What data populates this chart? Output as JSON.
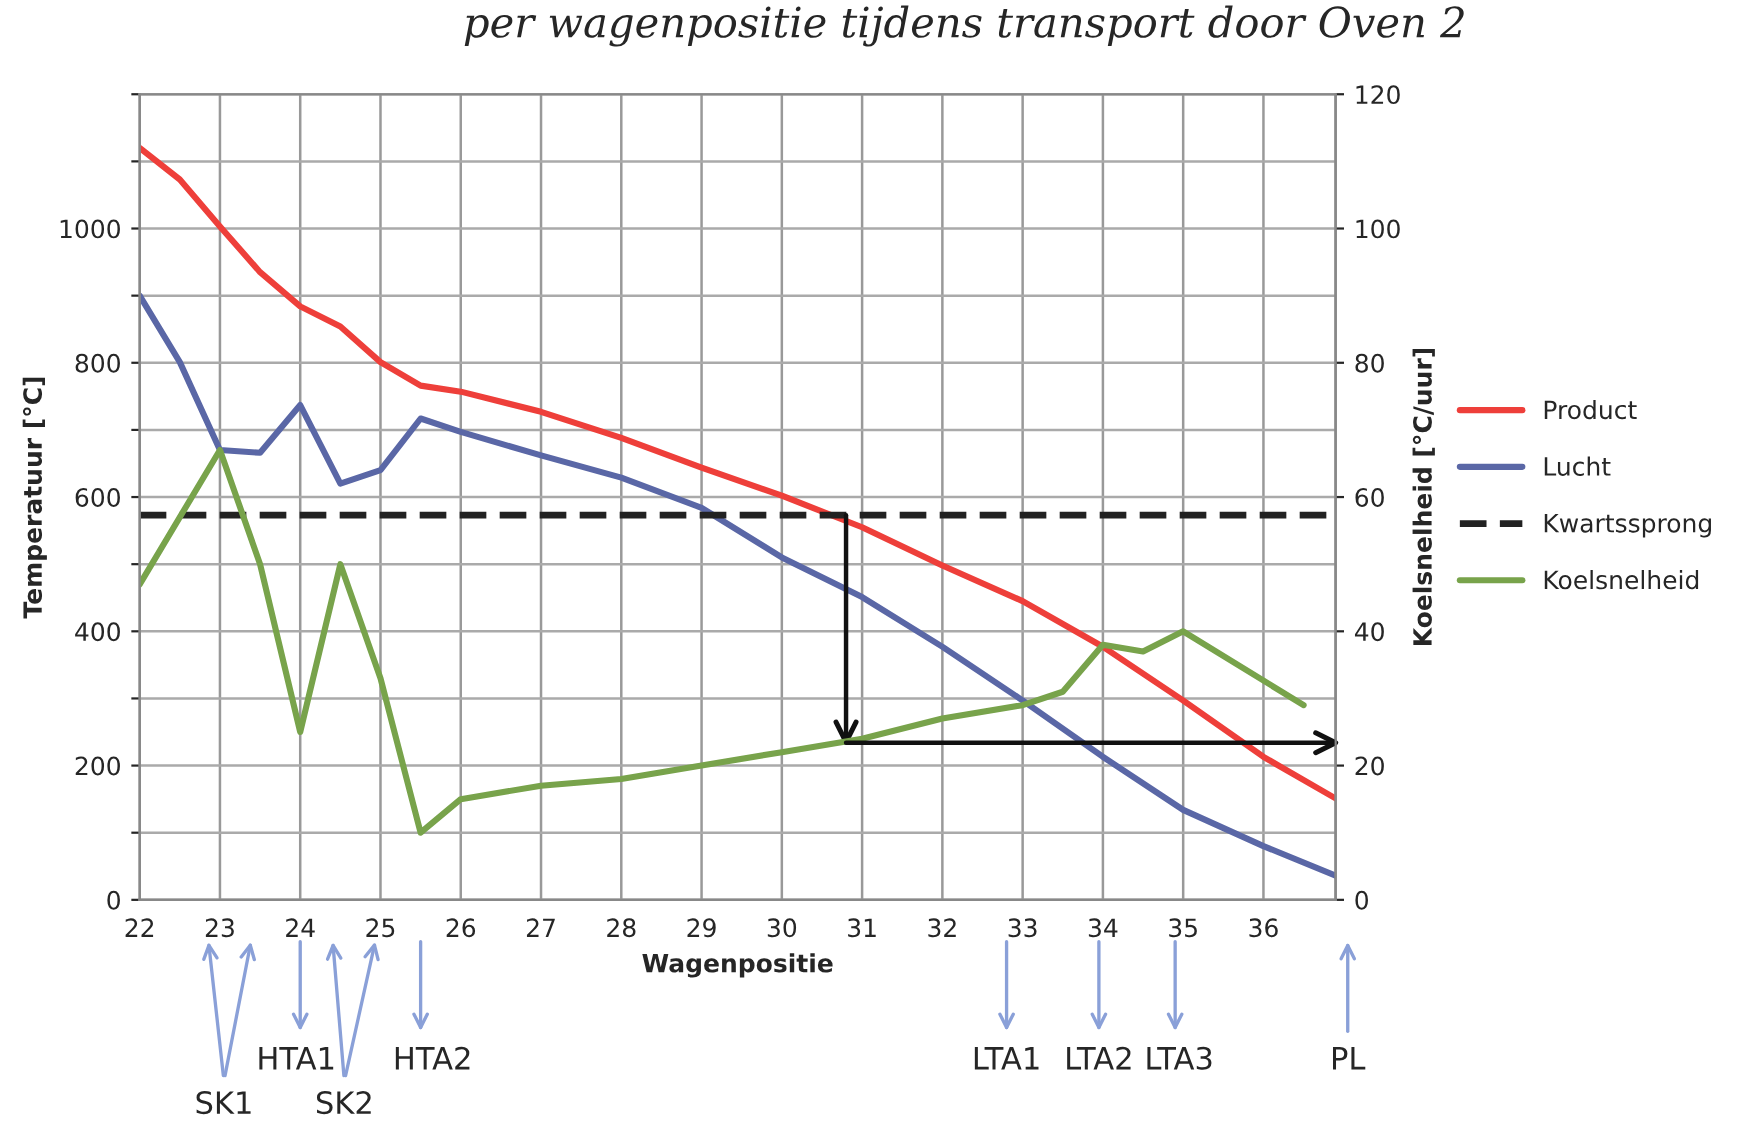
{
  "chart_data": {
    "type": "line",
    "title": "per wagenpositie tijdens transport door Oven 2",
    "xlabel": "Wagenpositie",
    "ylabel": "Temperatuur [°C]",
    "y2label": "Koelsnelheid [°C/uur]",
    "xlim": [
      22,
      36.9
    ],
    "xticks": [
      22,
      23,
      24,
      25,
      26,
      27,
      28,
      29,
      30,
      31,
      32,
      33,
      34,
      35,
      36
    ],
    "ylim": [
      0,
      1200
    ],
    "yticks": [
      0,
      {
        "value": 100,
        "label": null
      },
      200,
      {
        "value": 300,
        "label": null
      },
      400,
      {
        "value": 500,
        "label": null
      },
      600,
      {
        "value": 700,
        "label": null
      },
      800,
      {
        "value": 900,
        "label": null
      },
      1000,
      {
        "value": 1100,
        "label": null
      },
      {
        "value": 1200,
        "label": null
      }
    ],
    "y2lim": [
      0,
      120
    ],
    "y2ticks": [
      0,
      20,
      40,
      60,
      80,
      100,
      120
    ],
    "grid": true,
    "legend": "right",
    "marker": "none",
    "series": [
      {
        "name": "Product",
        "color": "#ee3f3a",
        "line_style": "solid",
        "x": [
          22,
          22.5,
          23,
          23.5,
          24,
          24.5,
          25,
          25.5,
          26,
          27,
          28,
          29,
          30,
          31,
          32,
          33,
          34,
          35,
          36,
          36.9
        ],
        "values": [
          1120,
          1073,
          1003,
          935,
          884,
          854,
          801,
          766,
          757,
          727,
          688,
          644,
          602,
          555,
          498,
          445,
          377,
          297,
          213,
          151
        ]
      },
      {
        "name": "Lucht",
        "color": "#5a67a6",
        "line_style": "solid",
        "x": [
          22,
          22.5,
          23,
          23.5,
          24,
          24.5,
          25,
          25.5,
          26,
          27,
          28,
          29,
          30,
          31,
          32,
          33,
          34,
          35,
          36,
          36.9
        ],
        "values": [
          900,
          801,
          670,
          666,
          737,
          620,
          640,
          717,
          697,
          662,
          629,
          584,
          510,
          451,
          377,
          297,
          213,
          134,
          80,
          36
        ]
      },
      {
        "name": "Kwartssprong",
        "color": "#222222",
        "line_style": "dashed",
        "x": [
          22,
          36.9
        ],
        "values": [
          573,
          573
        ]
      },
      {
        "name": "Koelsnelheid",
        "color": "#78a34b",
        "line_style": "solid",
        "axis": "y2",
        "x": [
          22,
          23,
          23.5,
          24,
          24.5,
          25,
          25.5,
          26,
          27,
          28,
          29,
          30,
          31,
          32,
          33,
          33.5,
          34,
          34.5,
          35,
          36.5
        ],
        "values": [
          47,
          67,
          50,
          25,
          50,
          33,
          10,
          15,
          17,
          18,
          20,
          22,
          24,
          27,
          29,
          31,
          38,
          37,
          40,
          29
        ]
      },
      {
        "color": "#111111",
        "line_style": "solid",
        "x": [
          30.8,
          30.8
        ],
        "values": [
          573,
          235
        ]
      },
      {
        "color": "#111111",
        "line_style": "solid",
        "axis": "y2",
        "x": [
          30.8,
          36.9
        ],
        "values": [
          23.4,
          23.4
        ]
      }
    ],
    "annotations": [
      "SK1",
      "HTA1",
      "SK2",
      "HTA2",
      "LTA1",
      "LTA2",
      "LTA3",
      "PL"
    ]
  }
}
